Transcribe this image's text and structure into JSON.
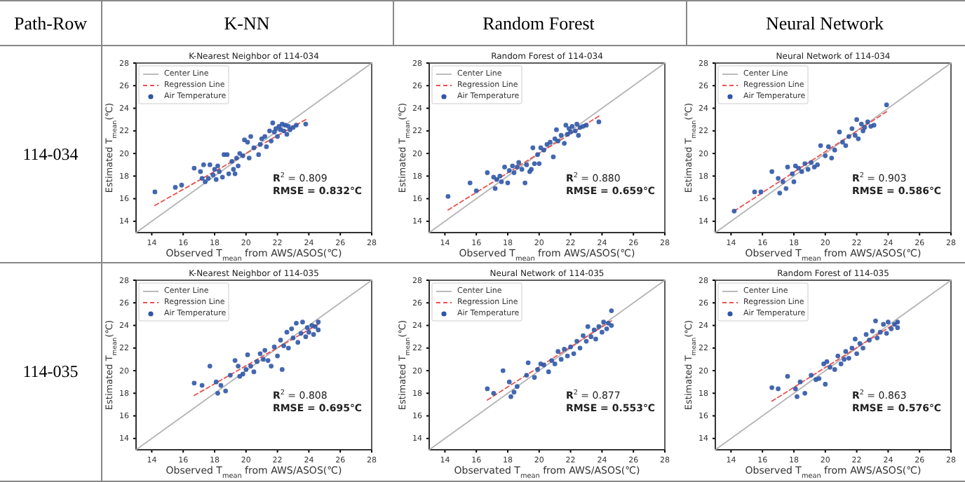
{
  "chart_data": [
    {
      "type": "other",
      "annotations": [
        "Path-Row",
        "K-NN",
        "Random Forest",
        "Neural Network",
        "114-034",
        "114-035"
      ]
    },
    {
      "type": "scatter",
      "title": "K-Nearest Neighbor of 114-034",
      "xlabel": "Observed T$_{mean}$ from AWS/ASOS(℃)",
      "ylabel": "Estimated T$_{mean}$(℃)",
      "xlim": [
        13,
        28
      ],
      "ylim": [
        13,
        28
      ],
      "xticks": [
        14,
        16,
        18,
        20,
        22,
        24,
        26,
        28
      ],
      "yticks": [
        14,
        16,
        18,
        20,
        22,
        24,
        26,
        28
      ],
      "legend": "top left",
      "annotations": [
        "R$^{2}$ = 0.809",
        "RMSE = 0.832℃"
      ],
      "series": [
        {
          "name": "Center Line",
          "type": "line",
          "color": "#b4b4b4",
          "x": [
            13,
            28
          ],
          "values": [
            13,
            28
          ]
        },
        {
          "name": "Regression Line",
          "type": "line",
          "line_style": "dashed",
          "color": "#e8524f",
          "x": [
            14.2,
            23.8
          ],
          "values": [
            15.4,
            23.0
          ]
        },
        {
          "name": "Air Temperature",
          "type": "scatter",
          "marker": "circle",
          "color": "#2f56a8",
          "x": [
            14.2,
            15.5,
            15.9,
            16.7,
            17.1,
            17.2,
            17.3,
            17.4,
            17.6,
            17.7,
            17.9,
            18.0,
            18.1,
            18.2,
            18.3,
            18.5,
            18.6,
            18.8,
            18.9,
            19.1,
            19.2,
            19.3,
            19.4,
            19.5,
            19.6,
            19.8,
            19.9,
            20.1,
            20.2,
            20.3,
            20.5,
            20.8,
            20.9,
            21.0,
            21.2,
            21.3,
            21.5,
            21.6,
            21.7,
            21.8,
            21.9,
            22.0,
            22.1,
            22.2,
            22.3,
            22.4,
            22.5,
            22.6,
            22.7,
            22.8,
            23.0,
            23.2,
            23.8
          ],
          "values": [
            16.6,
            17.0,
            17.2,
            18.7,
            18.4,
            17.8,
            19.0,
            17.5,
            17.8,
            19.0,
            18.1,
            18.6,
            17.7,
            18.9,
            18.4,
            17.9,
            19.9,
            19.9,
            18.2,
            19.3,
            18.6,
            18.2,
            19.6,
            18.9,
            20.0,
            19.8,
            21.2,
            21.0,
            19.6,
            21.5,
            20.5,
            19.9,
            20.8,
            21.3,
            21.5,
            20.6,
            22.0,
            21.1,
            22.7,
            21.9,
            22.2,
            21.5,
            22.4,
            22.1,
            22.6,
            22.0,
            22.5,
            21.7,
            22.4,
            22.1,
            22.3,
            22.5,
            22.6
          ]
        }
      ]
    },
    {
      "type": "scatter",
      "title": "Random Forest of 114-034",
      "xlabel": "Observed T$_{mean}$ from AWS/ASOS(℃)",
      "ylabel": "Estimated T$_{mean}$(℃)",
      "xlim": [
        13,
        28
      ],
      "ylim": [
        13,
        28
      ],
      "xticks": [
        14,
        16,
        18,
        20,
        22,
        24,
        26,
        28
      ],
      "yticks": [
        14,
        16,
        18,
        20,
        22,
        24,
        26,
        28
      ],
      "legend": "top left",
      "annotations": [
        "R$^{2}$ = 0.880",
        "RMSE = 0.659℃"
      ],
      "series": [
        {
          "name": "Center Line",
          "type": "line",
          "color": "#b4b4b4",
          "x": [
            13,
            28
          ],
          "values": [
            13,
            28
          ]
        },
        {
          "name": "Regression Line",
          "type": "line",
          "line_style": "dashed",
          "color": "#e8524f",
          "x": [
            14.2,
            23.8
          ],
          "values": [
            15.0,
            23.3
          ]
        },
        {
          "name": "Air Temperature",
          "type": "scatter",
          "marker": "circle",
          "color": "#2f56a8",
          "x": [
            14.2,
            15.6,
            16.0,
            16.7,
            17.1,
            17.2,
            17.3,
            17.5,
            17.6,
            17.8,
            18.0,
            18.1,
            18.3,
            18.4,
            18.6,
            18.7,
            18.9,
            19.1,
            19.2,
            19.4,
            19.5,
            19.6,
            19.7,
            19.9,
            20.0,
            20.1,
            20.3,
            20.5,
            20.7,
            20.9,
            21.0,
            21.1,
            21.2,
            21.4,
            21.6,
            21.7,
            21.8,
            21.9,
            22.0,
            22.1,
            22.3,
            22.4,
            22.5,
            22.6,
            22.8,
            23.0,
            23.8
          ],
          "values": [
            16.2,
            17.4,
            16.7,
            18.3,
            17.9,
            16.9,
            17.7,
            18.0,
            17.5,
            18.8,
            17.4,
            18.5,
            18.9,
            18.3,
            18.8,
            19.2,
            18.6,
            17.4,
            19.0,
            18.4,
            18.6,
            20.5,
            19.1,
            19.9,
            19.1,
            20.5,
            20.3,
            20.8,
            21.0,
            19.7,
            21.3,
            22.1,
            21.1,
            21.6,
            20.9,
            22.5,
            21.7,
            22.2,
            21.9,
            22.4,
            22.0,
            22.6,
            21.6,
            22.3,
            22.4,
            22.5,
            22.8
          ]
        }
      ]
    },
    {
      "type": "scatter",
      "title": "Neural Network of 114-034",
      "xlabel": "Observed T$_{mean}$ from AWS/ASOS(℃)",
      "ylabel": "Estimated T$_{mean}$(℃)",
      "xlim": [
        13,
        28
      ],
      "ylim": [
        13,
        28
      ],
      "xticks": [
        14,
        16,
        18,
        20,
        22,
        24,
        26,
        28
      ],
      "yticks": [
        14,
        16,
        18,
        20,
        22,
        24,
        26,
        28
      ],
      "legend": "top left",
      "annotations": [
        "R$^{2}$ = 0.903",
        "RMSE = 0.586℃"
      ],
      "series": [
        {
          "name": "Center Line",
          "type": "line",
          "color": "#b4b4b4",
          "x": [
            13,
            28
          ],
          "values": [
            13,
            28
          ]
        },
        {
          "name": "Regression Line",
          "type": "line",
          "line_style": "dashed",
          "color": "#e8524f",
          "x": [
            14.2,
            23.9
          ],
          "values": [
            14.9,
            23.7
          ]
        },
        {
          "name": "Air Temperature",
          "type": "scatter",
          "marker": "circle",
          "color": "#2f56a8",
          "x": [
            14.2,
            15.5,
            15.9,
            16.6,
            17.0,
            17.1,
            17.3,
            17.5,
            17.6,
            17.9,
            18.0,
            18.1,
            18.3,
            18.5,
            18.7,
            18.9,
            19.1,
            19.3,
            19.5,
            19.7,
            20.0,
            20.2,
            20.4,
            20.6,
            20.9,
            21.1,
            21.3,
            21.5,
            21.7,
            21.9,
            22.0,
            22.1,
            22.3,
            22.4,
            22.5,
            22.7,
            22.9,
            23.1,
            23.9
          ],
          "values": [
            14.9,
            16.6,
            16.6,
            18.4,
            17.8,
            16.5,
            17.5,
            16.9,
            18.8,
            18.2,
            17.5,
            18.9,
            18.7,
            18.4,
            19.1,
            18.6,
            19.2,
            18.8,
            19.0,
            20.7,
            19.8,
            20.6,
            19.6,
            20.3,
            21.9,
            21.0,
            20.7,
            21.5,
            22.2,
            21.6,
            23.0,
            21.3,
            22.6,
            22.0,
            22.3,
            22.8,
            22.4,
            22.5,
            24.3
          ]
        }
      ]
    },
    {
      "type": "scatter",
      "title": "K-Nearest Neighbor of 114-035",
      "xlabel": "Observed T$_{mean}$ from AWS/ASOS(℃)",
      "ylabel": "Estimated T$_{mean}$(℃)",
      "xlim": [
        13,
        28
      ],
      "ylim": [
        13,
        28
      ],
      "xticks": [
        14,
        16,
        18,
        20,
        22,
        24,
        26,
        28
      ],
      "yticks": [
        14,
        16,
        18,
        20,
        22,
        24,
        26,
        28
      ],
      "legend": "top left",
      "annotations": [
        "R$^{2}$ = 0.808",
        "RMSE = 0.695℃"
      ],
      "series": [
        {
          "name": "Center Line",
          "type": "line",
          "color": "#b4b4b4",
          "x": [
            13,
            28
          ],
          "values": [
            13,
            28
          ]
        },
        {
          "name": "Regression Line",
          "type": "line",
          "line_style": "dashed",
          "color": "#e8524f",
          "x": [
            16.7,
            24.6
          ],
          "values": [
            17.8,
            24.1
          ]
        },
        {
          "name": "Air Temperature",
          "type": "scatter",
          "marker": "circle",
          "color": "#2f56a8",
          "x": [
            16.7,
            17.2,
            17.7,
            18.1,
            18.2,
            18.4,
            18.7,
            19.0,
            19.3,
            19.5,
            19.6,
            19.8,
            20.0,
            20.1,
            20.3,
            20.5,
            20.7,
            20.9,
            21.1,
            21.2,
            21.4,
            21.6,
            21.8,
            22.0,
            22.2,
            22.3,
            22.4,
            22.6,
            22.7,
            22.9,
            23.0,
            23.2,
            23.3,
            23.5,
            23.6,
            23.8,
            23.9,
            24.0,
            24.2,
            24.3,
            24.4,
            24.6,
            24.6
          ],
          "values": [
            18.9,
            18.7,
            20.4,
            19.0,
            18.0,
            18.7,
            18.2,
            19.6,
            20.9,
            20.4,
            19.5,
            19.7,
            20.1,
            21.4,
            20.4,
            19.9,
            20.8,
            21.5,
            21.0,
            21.8,
            20.9,
            20.4,
            22.1,
            21.3,
            22.7,
            20.1,
            22.2,
            23.4,
            22.0,
            23.7,
            22.9,
            24.2,
            22.5,
            23.3,
            24.3,
            23.0,
            23.8,
            23.4,
            24.0,
            23.2,
            23.9,
            24.3,
            23.6
          ]
        }
      ]
    },
    {
      "type": "scatter",
      "title": "Neural Network of 114-035",
      "xlabel": "Observated T$_{mean}$ from AWS/ASOS(℃)",
      "ylabel": "Estimated T$_{mean}$(℃)",
      "xlim": [
        13,
        28
      ],
      "ylim": [
        13,
        28
      ],
      "xticks": [
        14,
        16,
        18,
        20,
        22,
        24,
        26,
        28
      ],
      "yticks": [
        14,
        16,
        18,
        20,
        22,
        24,
        26,
        28
      ],
      "legend": "top left",
      "annotations": [
        "R$^{2}$ = 0.877",
        "RMSE = 0.553℃"
      ],
      "series": [
        {
          "name": "Center Line",
          "type": "line",
          "color": "#b4b4b4",
          "x": [
            13,
            28
          ],
          "values": [
            13,
            28
          ]
        },
        {
          "name": "Regression Line",
          "type": "line",
          "line_style": "dashed",
          "color": "#e8524f",
          "x": [
            16.7,
            24.6
          ],
          "values": [
            17.4,
            24.4
          ]
        },
        {
          "name": "Air Temperature",
          "type": "scatter",
          "marker": "circle",
          "color": "#2f56a8",
          "x": [
            16.7,
            17.1,
            17.7,
            18.1,
            18.2,
            18.4,
            18.6,
            19.2,
            19.3,
            19.7,
            19.9,
            20.1,
            20.3,
            20.6,
            20.8,
            21.0,
            21.2,
            21.4,
            21.6,
            21.8,
            22.0,
            22.2,
            22.4,
            22.6,
            22.8,
            23.0,
            23.1,
            23.3,
            23.5,
            23.6,
            23.8,
            24.0,
            24.1,
            24.3,
            24.4,
            24.6,
            24.6
          ],
          "values": [
            18.4,
            18.0,
            20.0,
            19.0,
            17.7,
            18.1,
            18.6,
            19.6,
            20.7,
            19.4,
            20.1,
            20.6,
            20.5,
            19.9,
            20.9,
            20.6,
            21.7,
            21.0,
            21.9,
            21.3,
            22.1,
            21.5,
            22.6,
            22.0,
            23.1,
            22.6,
            23.9,
            23.0,
            23.6,
            22.8,
            23.9,
            23.4,
            24.3,
            23.7,
            24.2,
            25.3,
            24.0
          ]
        }
      ]
    },
    {
      "type": "scatter",
      "title": "Random Forest of 114-035",
      "xlabel": "Observed T$_{mean}$ from AWS/ASOS(℃)",
      "ylabel": "Estimated T$_{mean}$(℃)",
      "xlim": [
        13,
        28
      ],
      "ylim": [
        13,
        28
      ],
      "xticks": [
        14,
        16,
        18,
        20,
        22,
        24,
        26,
        28
      ],
      "yticks": [
        14,
        16,
        18,
        20,
        22,
        24,
        26,
        28
      ],
      "legend": "top left",
      "annotations": [
        "R$^{2}$ = 0.863",
        "RMSE = 0.576℃"
      ],
      "series": [
        {
          "name": "Center Line",
          "type": "line",
          "color": "#b4b4b4",
          "x": [
            13,
            28
          ],
          "values": [
            13,
            28
          ]
        },
        {
          "name": "Regression Line",
          "type": "line",
          "line_style": "dashed",
          "color": "#e8524f",
          "x": [
            16.6,
            24.6
          ],
          "values": [
            17.3,
            24.3
          ]
        },
        {
          "name": "Air Temperature",
          "type": "scatter",
          "marker": "circle",
          "color": "#2f56a8",
          "x": [
            16.6,
            17.0,
            17.6,
            18.1,
            18.2,
            18.4,
            18.7,
            19.1,
            19.4,
            19.6,
            19.9,
            20.0,
            20.1,
            20.3,
            20.6,
            20.8,
            21.0,
            21.2,
            21.3,
            21.5,
            21.7,
            21.9,
            22.0,
            22.2,
            22.4,
            22.6,
            22.8,
            23.0,
            23.2,
            23.3,
            23.5,
            23.7,
            23.9,
            24.0,
            24.2,
            24.4,
            24.6,
            24.6
          ],
          "values": [
            18.5,
            18.4,
            19.5,
            18.4,
            17.7,
            19.0,
            18.0,
            19.6,
            19.2,
            19.3,
            20.6,
            18.8,
            20.8,
            20.3,
            20.1,
            21.3,
            20.6,
            21.0,
            21.7,
            21.1,
            22.0,
            22.8,
            21.5,
            22.4,
            22.0,
            23.2,
            22.7,
            23.5,
            24.4,
            22.9,
            23.4,
            24.1,
            23.3,
            24.3,
            23.7,
            24.1,
            24.3,
            23.8
          ]
        }
      ]
    }
  ]
}
